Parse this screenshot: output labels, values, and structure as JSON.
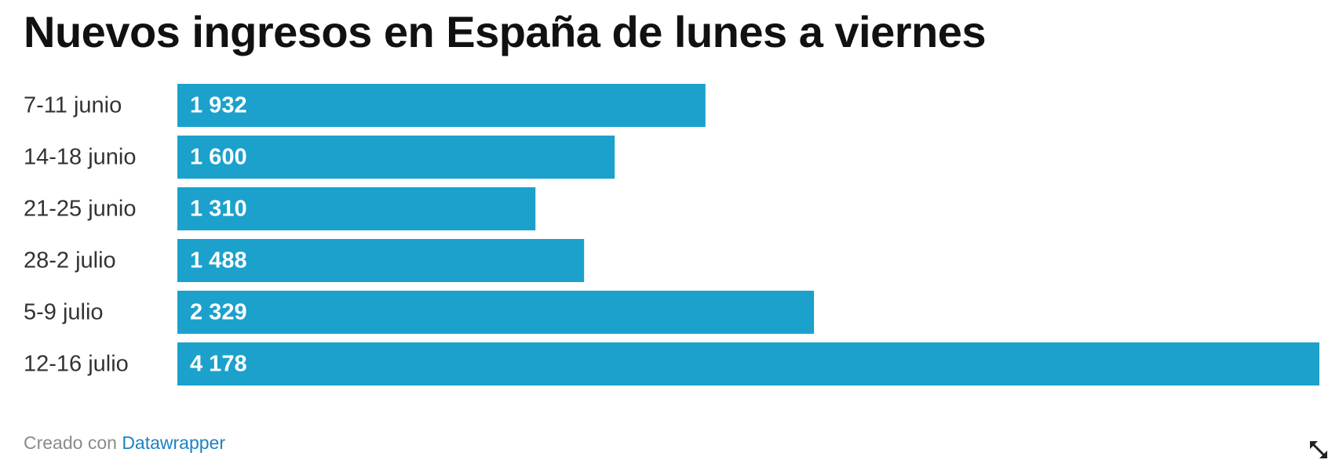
{
  "title": "Nuevos ingresos en España de lunes a viernes",
  "footer": {
    "prefix": "Creado con",
    "link_label": "Datawrapper"
  },
  "colors": {
    "bar": "#1ba1cc",
    "bar_label": "#ffffff",
    "category_label": "#333333",
    "link": "#1d81c4"
  },
  "icons": {
    "expand": "expand-arrow-icon"
  },
  "chart_data": {
    "type": "bar",
    "orientation": "horizontal",
    "title": "Nuevos ingresos en España de lunes a viernes",
    "categories": [
      "7-11 junio",
      "14-18 junio",
      "21-25 junio",
      "28-2 julio",
      "5-9 julio",
      "12-16 julio"
    ],
    "values": [
      1932,
      1600,
      1310,
      1488,
      2329,
      4178
    ],
    "value_labels": [
      "1 932",
      "1 600",
      "1 310",
      "1 488",
      "2 329",
      "4 178"
    ],
    "xlabel": "",
    "ylabel": "",
    "xlim": [
      0,
      4178
    ],
    "grid": false,
    "legend": "none",
    "data_labels": "inside-left"
  }
}
